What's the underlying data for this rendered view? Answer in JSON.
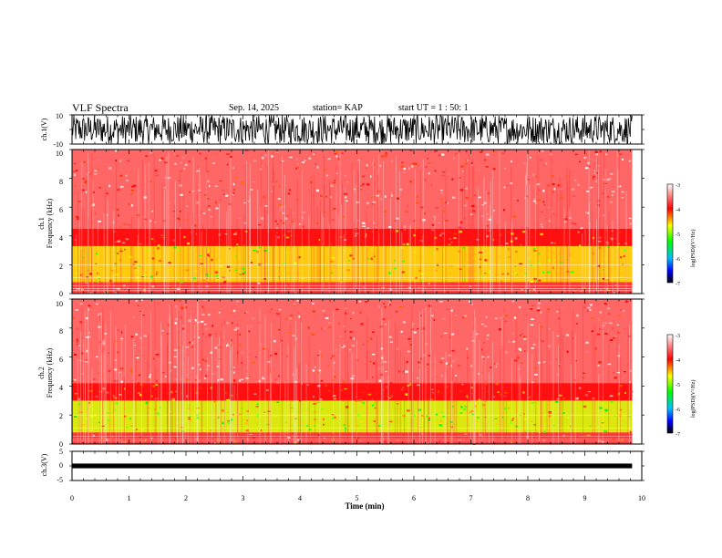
{
  "header": {
    "title": "VLF Spectra",
    "date": "Sep. 14, 2025",
    "station_label": "station= KAP",
    "start_label": "start UT =  1 : 50: 1"
  },
  "chart_data": [
    {
      "type": "line",
      "name": "ch1-waveform",
      "ylabel": "ch.1(V)",
      "ylim": [
        -10,
        10
      ],
      "ytick_labels": [
        "-10",
        "10"
      ],
      "xlim": [
        0,
        10
      ],
      "data_end_min": 9.83,
      "description_values": {
        "typical_min": -10,
        "typical_max": 10
      }
    },
    {
      "type": "heatmap",
      "name": "ch1-spectrogram",
      "ylabel_channel": "ch.1",
      "ylabel": "Frequency (kHz)",
      "ylim": [
        0,
        10
      ],
      "ytick_labels": [
        "0",
        "2",
        "4",
        "6",
        "8",
        "10"
      ],
      "xlim": [
        0,
        10
      ],
      "data_end_min": 9.83,
      "intensity_bands_khz": [
        {
          "f_low": 0.0,
          "f_high": 0.8,
          "level": -3.8
        },
        {
          "f_low": 0.8,
          "f_high": 3.3,
          "level": -4.6
        },
        {
          "f_low": 3.3,
          "f_high": 4.5,
          "level": -4.0
        },
        {
          "f_low": 4.5,
          "f_high": 10.0,
          "level": -3.6
        }
      ],
      "colorbar": {
        "label": "log(PSD)(V²/Hz)",
        "range": [
          -7,
          -3
        ],
        "tick_labels": [
          "-3",
          "-4",
          "-5",
          "-6",
          "-7"
        ]
      }
    },
    {
      "type": "heatmap",
      "name": "ch2-spectrogram",
      "ylabel_channel": "ch.2",
      "ylabel": "Frequency (kHz)",
      "ylim": [
        0,
        10
      ],
      "ytick_labels": [
        "0",
        "2",
        "4",
        "6",
        "8",
        "10"
      ],
      "xlim": [
        0,
        10
      ],
      "data_end_min": 9.83,
      "intensity_bands_khz": [
        {
          "f_low": 0.0,
          "f_high": 0.8,
          "level": -3.8
        },
        {
          "f_low": 0.8,
          "f_high": 3.0,
          "level": -4.8
        },
        {
          "f_low": 3.0,
          "f_high": 4.2,
          "level": -4.0
        },
        {
          "f_low": 4.2,
          "f_high": 10.0,
          "level": -3.6
        }
      ],
      "colorbar": {
        "label": "log(PSD)(V²/Hz)",
        "range": [
          -7,
          -3
        ],
        "tick_labels": [
          "-3",
          "-4",
          "-5",
          "-6",
          "-7"
        ]
      }
    },
    {
      "type": "line",
      "name": "ch3-waveform",
      "ylabel": "ch.3(V)",
      "ylim": [
        -5,
        5
      ],
      "ytick_labels": [
        "-5",
        "0",
        "5"
      ],
      "xlim": [
        0,
        10
      ],
      "data_end_min": 9.83,
      "description_values": {
        "baseline": 0,
        "amplitude": 0.8
      }
    }
  ],
  "xaxis": {
    "label": "Time (min)",
    "tick_labels": [
      "0",
      "1",
      "2",
      "3",
      "4",
      "5",
      "6",
      "7",
      "8",
      "9",
      "10"
    ]
  }
}
